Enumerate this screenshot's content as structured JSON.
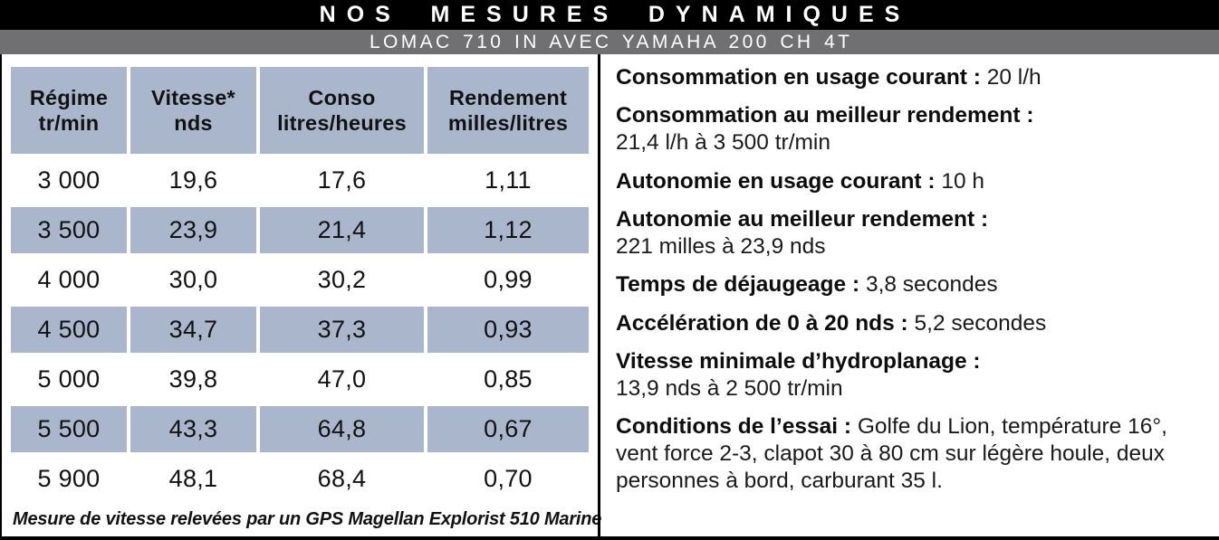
{
  "header": {
    "title": "NOS MESURES DYNAMIQUES",
    "subtitle": "LOMAC 710 IN AVEC YAMAHA 200 CH 4T"
  },
  "table": {
    "columns": [
      {
        "line1": "Régime",
        "line2": "tr/min"
      },
      {
        "line1": "Vitesse*",
        "line2": "nds"
      },
      {
        "line1": "Conso",
        "line2": "litres/heures"
      },
      {
        "line1": "Rendement",
        "line2": "milles/litres"
      }
    ],
    "rows": [
      [
        "3 000",
        "19,6",
        "17,6",
        "1,11"
      ],
      [
        "3 500",
        "23,9",
        "21,4",
        "1,12"
      ],
      [
        "4 000",
        "30,0",
        "30,2",
        "0,99"
      ],
      [
        "4 500",
        "34,7",
        "37,3",
        "0,93"
      ],
      [
        "5 000",
        "39,8",
        "47,0",
        "0,85"
      ],
      [
        "5 500",
        "43,3",
        "64,8",
        "0,67"
      ],
      [
        "5 900",
        "48,1",
        "68,4",
        "0,70"
      ]
    ],
    "footnote": "Mesure de vitesse relevées par un GPS Magellan Explorist 510 Marine"
  },
  "measures": [
    {
      "label": "Consommation en usage courant :",
      "value": "20 l/h"
    },
    {
      "label": "Consommation au meilleur rendement :",
      "value": "21,4 l/h à 3 500 tr/min"
    },
    {
      "label": "Autonomie en usage courant :",
      "value": "10 h"
    },
    {
      "label": "Autonomie au meilleur rendement :",
      "value": "221 milles à 23,9 nds"
    },
    {
      "label": "Temps de déjaugeage :",
      "value": "3,8 secondes"
    },
    {
      "label": "Accélération de 0 à 20 nds :",
      "value": "5,2 secondes"
    },
    {
      "label": "Vitesse minimale d’hydroplanage :",
      "value": "13,9 nds à 2 500 tr/min"
    },
    {
      "label": "Conditions de l’essai :",
      "value": "Golfe du Lion, température 16°, vent force 2-3, clapot 30 à 80 cm sur légère houle, deux personnes à bord, carburant 35 l."
    }
  ],
  "colors": {
    "cell_blue": "#a9b6cc",
    "subtitle_gray": "#707072",
    "bar_black": "#000000"
  }
}
